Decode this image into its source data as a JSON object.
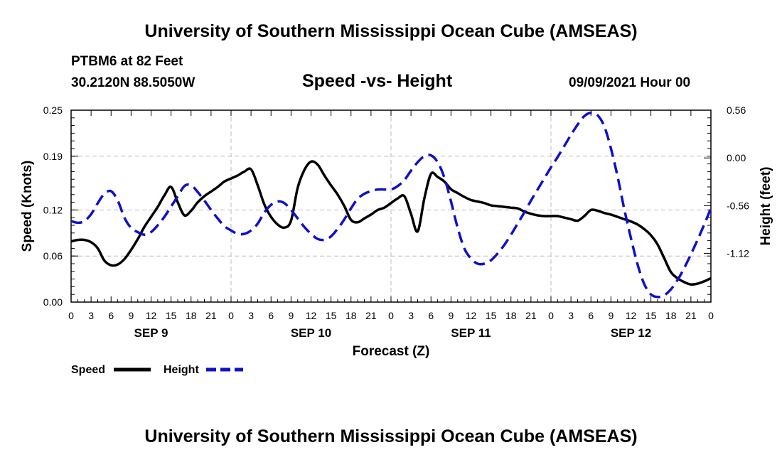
{
  "header": {
    "title_top": "University of Southern Mississippi Ocean Cube (AMSEAS)",
    "station": "PTBM6 at 82 Feet",
    "location": "30.2120N  88.5050W",
    "subtitle": "Speed -vs- Height",
    "datetime": "09/09/2021 Hour 00",
    "title_bottom": "University of Southern Mississippi Ocean Cube (AMSEAS)"
  },
  "legend": {
    "speed_label": "Speed",
    "height_label": "Height"
  },
  "colors": {
    "speed": "#000000",
    "height": "#1010c8",
    "grid": "#bbbbbb"
  },
  "chart_data": {
    "type": "line",
    "title": "Speed -vs- Height",
    "xlabel": "Forecast (Z)",
    "ylabel": "Speed (Knots)",
    "y2label": "Height (feet)",
    "x_unit": "hours from 09/09/2021 00Z",
    "xlim": [
      0,
      96
    ],
    "ylim": [
      0.0,
      0.25
    ],
    "y2lim": [
      -1.69,
      0.56
    ],
    "x_ticks": [
      0,
      3,
      6,
      9,
      12,
      15,
      18,
      21,
      24,
      27,
      30,
      33,
      36,
      39,
      42,
      45,
      48,
      51,
      54,
      57,
      60,
      63,
      66,
      69,
      72,
      75,
      78,
      81,
      84,
      87,
      90,
      93,
      96
    ],
    "x_tick_labels": [
      "0",
      "3",
      "6",
      "9",
      "12",
      "15",
      "18",
      "21",
      "0",
      "3",
      "6",
      "9",
      "12",
      "15",
      "18",
      "21",
      "0",
      "3",
      "6",
      "9",
      "12",
      "15",
      "18",
      "21",
      "0",
      "3",
      "6",
      "9",
      "12",
      "15",
      "18",
      "21",
      "0"
    ],
    "y_ticks": [
      0.0,
      0.06,
      0.12,
      0.19,
      0.25
    ],
    "y_tick_labels": [
      "0.00",
      "0.06",
      "0.12",
      "0.19",
      "0.25"
    ],
    "y2_ticks": [
      0.56,
      0.0,
      -0.56,
      -1.12
    ],
    "y2_tick_labels": [
      "0.56",
      "0.00",
      "-0.56",
      "-1.12"
    ],
    "day_labels": [
      {
        "x": 12,
        "label": "SEP 9"
      },
      {
        "x": 36,
        "label": "SEP 10"
      },
      {
        "x": 60,
        "label": "SEP 11"
      },
      {
        "x": 84,
        "label": "SEP 12"
      }
    ],
    "grid": true,
    "series": [
      {
        "name": "Speed",
        "axis": "left",
        "style": "solid",
        "x": [
          0,
          1,
          2,
          3,
          4,
          5,
          6,
          7,
          8,
          9,
          10,
          11,
          12,
          13,
          14,
          15,
          16,
          17,
          18,
          19,
          20,
          21,
          22,
          23,
          24,
          25,
          26,
          27,
          28,
          29,
          30,
          31,
          32,
          33,
          34,
          35,
          36,
          37,
          38,
          39,
          40,
          41,
          42,
          43,
          44,
          45,
          46,
          47,
          48,
          49,
          50,
          51,
          52,
          53,
          54,
          55,
          56,
          57,
          58,
          59,
          60,
          61,
          62,
          63,
          64,
          65,
          66,
          67,
          68,
          69,
          70,
          71,
          72,
          73,
          74,
          75,
          76,
          77,
          78,
          79,
          80,
          81,
          82,
          83,
          84,
          85,
          86,
          87,
          88,
          89,
          90,
          91,
          92,
          93,
          94,
          95,
          96
        ],
        "values": [
          0.079,
          0.081,
          0.081,
          0.078,
          0.07,
          0.054,
          0.048,
          0.049,
          0.056,
          0.068,
          0.082,
          0.098,
          0.111,
          0.124,
          0.139,
          0.15,
          0.13,
          0.113,
          0.119,
          0.13,
          0.138,
          0.144,
          0.15,
          0.157,
          0.161,
          0.165,
          0.17,
          0.173,
          0.152,
          0.127,
          0.111,
          0.101,
          0.097,
          0.106,
          0.149,
          0.172,
          0.183,
          0.179,
          0.165,
          0.152,
          0.14,
          0.125,
          0.107,
          0.104,
          0.109,
          0.114,
          0.12,
          0.123,
          0.129,
          0.135,
          0.138,
          0.115,
          0.092,
          0.135,
          0.167,
          0.163,
          0.157,
          0.147,
          0.142,
          0.137,
          0.133,
          0.131,
          0.129,
          0.126,
          0.125,
          0.124,
          0.123,
          0.122,
          0.118,
          0.115,
          0.113,
          0.112,
          0.112,
          0.112,
          0.11,
          0.108,
          0.106,
          0.112,
          0.12,
          0.119,
          0.116,
          0.114,
          0.111,
          0.108,
          0.105,
          0.101,
          0.095,
          0.087,
          0.075,
          0.057,
          0.039,
          0.031,
          0.026,
          0.023,
          0.024,
          0.027,
          0.031
        ]
      },
      {
        "name": "Height",
        "axis": "right",
        "style": "dashed",
        "x": [
          0,
          1,
          2,
          3,
          4,
          5,
          6,
          7,
          8,
          9,
          10,
          11,
          12,
          13,
          14,
          15,
          16,
          17,
          18,
          19,
          20,
          21,
          22,
          23,
          24,
          25,
          26,
          27,
          28,
          29,
          30,
          31,
          32,
          33,
          34,
          35,
          36,
          37,
          38,
          39,
          40,
          41,
          42,
          43,
          44,
          45,
          46,
          47,
          48,
          49,
          50,
          51,
          52,
          53,
          54,
          55,
          56,
          57,
          58,
          59,
          60,
          61,
          62,
          63,
          64,
          65,
          66,
          67,
          68,
          69,
          70,
          71,
          72,
          73,
          74,
          75,
          76,
          77,
          78,
          79,
          80,
          81,
          82,
          83,
          84,
          85,
          86,
          87,
          88,
          89,
          90,
          91,
          92,
          93,
          94,
          95,
          96
        ],
        "values": [
          -0.74,
          -0.76,
          -0.74,
          -0.66,
          -0.53,
          -0.42,
          -0.39,
          -0.5,
          -0.7,
          -0.82,
          -0.87,
          -0.9,
          -0.87,
          -0.79,
          -0.69,
          -0.57,
          -0.45,
          -0.33,
          -0.32,
          -0.4,
          -0.5,
          -0.61,
          -0.71,
          -0.8,
          -0.85,
          -0.89,
          -0.89,
          -0.85,
          -0.77,
          -0.64,
          -0.55,
          -0.51,
          -0.53,
          -0.61,
          -0.71,
          -0.81,
          -0.89,
          -0.95,
          -0.96,
          -0.92,
          -0.83,
          -0.72,
          -0.59,
          -0.48,
          -0.42,
          -0.39,
          -0.37,
          -0.37,
          -0.37,
          -0.33,
          -0.26,
          -0.15,
          -0.05,
          0.02,
          0.03,
          -0.05,
          -0.23,
          -0.51,
          -0.82,
          -1.06,
          -1.18,
          -1.24,
          -1.24,
          -1.2,
          -1.12,
          -1.02,
          -0.9,
          -0.77,
          -0.64,
          -0.5,
          -0.37,
          -0.24,
          -0.11,
          0.01,
          0.14,
          0.27,
          0.39,
          0.49,
          0.53,
          0.5,
          0.37,
          0.11,
          -0.22,
          -0.6,
          -0.94,
          -1.25,
          -1.48,
          -1.6,
          -1.63,
          -1.61,
          -1.54,
          -1.43,
          -1.29,
          -1.13,
          -0.96,
          -0.78,
          -0.59
        ]
      }
    ]
  }
}
